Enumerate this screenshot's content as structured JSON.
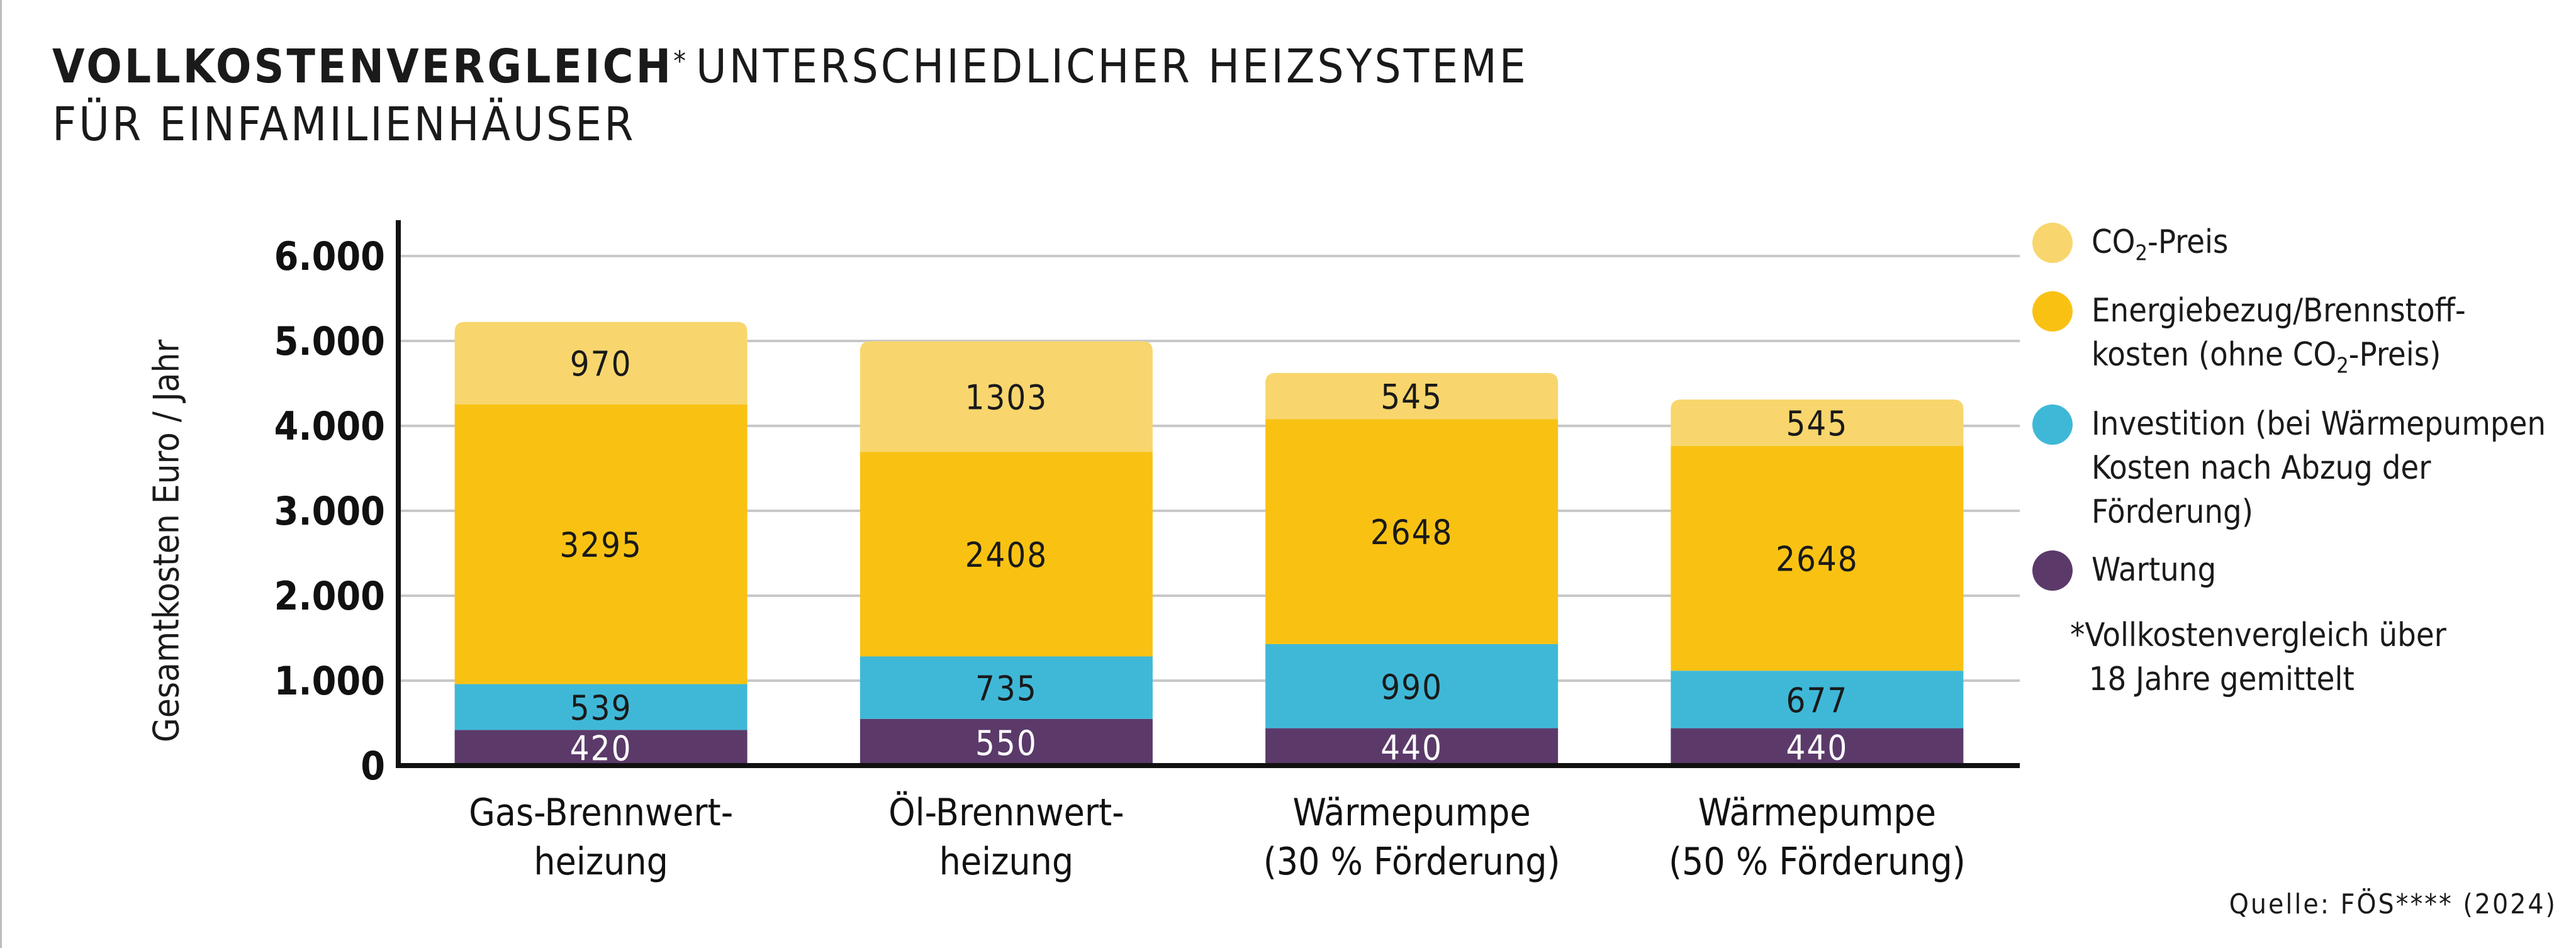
{
  "title": {
    "bold": "VOLLKOSTENVERGLEICH",
    "star": "*",
    "rest": "UNTERSCHIEDLICHER HEIZSYSTEME",
    "line2": "FÜR EINFAMILIENHÄUSER"
  },
  "chart_data": {
    "type": "bar",
    "stacked": true,
    "ylabel": "Gesamtkosten Euro / Jahr",
    "ylim": [
      0,
      6000
    ],
    "yticks": [
      {
        "value": 0,
        "label": "0"
      },
      {
        "value": 1000,
        "label": "1.000"
      },
      {
        "value": 2000,
        "label": "2.000"
      },
      {
        "value": 3000,
        "label": "3.000"
      },
      {
        "value": 4000,
        "label": "4.000"
      },
      {
        "value": 5000,
        "label": "5.000"
      },
      {
        "value": 6000,
        "label": "6.000"
      }
    ],
    "grid": true,
    "legend_position": "right",
    "categories": [
      [
        "Gas-Brennwert-",
        "heizung"
      ],
      [
        "Öl-Brennwert-",
        "heizung"
      ],
      [
        "Wärmepumpe",
        "(30 % Förderung)"
      ],
      [
        "Wärmepumpe",
        "(50 % Förderung)"
      ]
    ],
    "series": [
      {
        "key": "wartung",
        "name": "Wartung",
        "color": "#5b3a6a",
        "label_color": "#ffffff",
        "values": [
          420,
          550,
          440,
          440
        ]
      },
      {
        "key": "investition",
        "name": "Investition (bei Wärmepumpen Kosten nach Abzug der Förderung)",
        "color": "#3fb8d8",
        "label_color": "#1a1a1a",
        "values": [
          539,
          735,
          990,
          677
        ]
      },
      {
        "key": "energie",
        "name": "Energiebezug/Brennstoffkosten (ohne CO2-Preis)",
        "color": "#f9c213",
        "label_color": "#1a1a1a",
        "values": [
          3295,
          2408,
          2648,
          2648
        ]
      },
      {
        "key": "co2",
        "name": "CO2-Preis",
        "color": "#f8d66d",
        "label_color": "#1a1a1a",
        "values": [
          970,
          1303,
          545,
          545
        ]
      }
    ]
  },
  "legend": {
    "co2": {
      "pre": "CO",
      "sub": "2",
      "post": "-Preis"
    },
    "energie": {
      "line1": "Energiebezug/Brennstoff-",
      "line2_pre": "kosten (ohne CO",
      "line2_sub": "2",
      "line2_post": "-Preis)"
    },
    "investition": {
      "line1": "Investition (bei Wärmepumpen",
      "line2": "Kosten nach Abzug der",
      "line3": "Förderung)"
    },
    "wartung": "Wartung"
  },
  "footnote": "*Vollkostenvergleich über\n  18 Jahre gemittelt",
  "source": "Quelle: FÖS**** (2024)"
}
